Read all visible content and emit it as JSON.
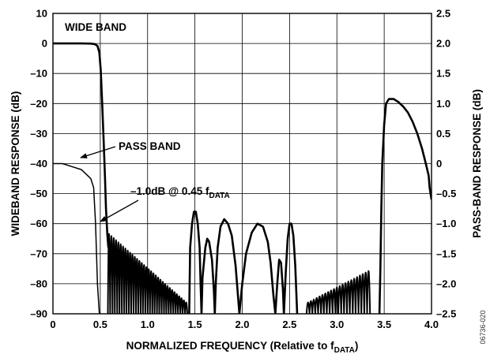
{
  "chart_data": {
    "type": "line",
    "xlabel": "NORMALIZED FREQUENCY (Relative to f",
    "xlabel_sub": "DATA",
    "xlabel_end": ")",
    "ylabel_left": "WIDEBAND RESPONSE (dB)",
    "ylabel_right": "PASS-BAND RESPONSE (dB)",
    "xlim": [
      0,
      4.0
    ],
    "ylim_left": [
      -90,
      10
    ],
    "ylim_right": [
      -2.5,
      2.5
    ],
    "x_ticks": [
      "0",
      "0.5",
      "1.0",
      "1.5",
      "2.0",
      "2.5",
      "3.0",
      "3.5",
      "4.0"
    ],
    "y_left_ticks": [
      "10",
      "0",
      "–10",
      "–20",
      "–30",
      "–40",
      "–50",
      "–60",
      "–70",
      "–80",
      "–90"
    ],
    "y_right_ticks": [
      "2.5",
      "2.0",
      "1.5",
      "1.0",
      "0.5",
      "0",
      "–0.5",
      "–1.0",
      "–1.5",
      "–2.0",
      "–2.5"
    ],
    "grid": true,
    "annotations": {
      "wide_band": "WIDE BAND",
      "pass_band": "PASS BAND",
      "marker_main": "–1.0dB @ 0.45 f",
      "marker_sub": "DATA"
    },
    "figure_id": "06736-020",
    "series": [
      {
        "axis": "left",
        "stroke_width": 2.6,
        "points": [
          [
            0,
            0
          ],
          [
            0.3,
            0
          ],
          [
            0.4,
            -0.05
          ],
          [
            0.44,
            -0.2
          ],
          [
            0.47,
            -0.8
          ],
          [
            0.49,
            -3
          ],
          [
            0.505,
            -9
          ],
          [
            0.52,
            -20
          ],
          [
            0.535,
            -32
          ],
          [
            0.55,
            -45
          ],
          [
            0.56,
            -55
          ],
          [
            0.575,
            -64
          ],
          [
            0.585,
            -68
          ]
        ]
      },
      {
        "axis": "right",
        "stroke_width": 1.5,
        "points": [
          [
            0,
            0
          ],
          [
            0.1,
            0
          ],
          [
            0.2,
            -0.05
          ],
          [
            0.3,
            -0.1
          ],
          [
            0.4,
            -0.25
          ],
          [
            0.43,
            -0.4
          ],
          [
            0.45,
            -1.0
          ],
          [
            0.47,
            -2.0
          ],
          [
            0.49,
            -2.5
          ]
        ]
      },
      {
        "axis": "left",
        "stroke_width": 2.6,
        "points": [
          [
            1.44,
            -90
          ],
          [
            1.45,
            -68
          ],
          [
            1.47,
            -60
          ],
          [
            1.49,
            -56
          ],
          [
            1.51,
            -56
          ],
          [
            1.53,
            -60
          ],
          [
            1.55,
            -68
          ],
          [
            1.56,
            -80
          ],
          [
            1.57,
            -90
          ],
          [
            1.58,
            -78
          ],
          [
            1.61,
            -68
          ],
          [
            1.63,
            -65
          ],
          [
            1.65,
            -66
          ],
          [
            1.68,
            -72
          ],
          [
            1.7,
            -82
          ],
          [
            1.71,
            -90
          ],
          [
            1.72,
            -80
          ],
          [
            1.74,
            -68
          ],
          [
            1.77,
            -61
          ],
          [
            1.81,
            -58.5
          ],
          [
            1.85,
            -60
          ],
          [
            1.89,
            -64
          ],
          [
            1.93,
            -74
          ],
          [
            1.97,
            -90
          ],
          [
            2.0,
            -80
          ],
          [
            2.04,
            -70
          ],
          [
            2.1,
            -63
          ],
          [
            2.16,
            -60
          ],
          [
            2.22,
            -61
          ],
          [
            2.27,
            -66
          ],
          [
            2.3,
            -73
          ],
          [
            2.33,
            -84
          ],
          [
            2.35,
            -90
          ],
          [
            2.37,
            -80
          ],
          [
            2.39,
            -72
          ],
          [
            2.41,
            -73
          ],
          [
            2.43,
            -82
          ],
          [
            2.44,
            -90
          ],
          [
            2.46,
            -76
          ],
          [
            2.48,
            -65
          ],
          [
            2.5,
            -60
          ],
          [
            2.52,
            -60
          ],
          [
            2.54,
            -64
          ],
          [
            2.56,
            -74
          ],
          [
            2.58,
            -90
          ]
        ]
      },
      {
        "axis": "left",
        "stroke_width": 2.6,
        "points": [
          [
            3.45,
            -90
          ],
          [
            3.46,
            -75
          ],
          [
            3.47,
            -55
          ],
          [
            3.48,
            -40
          ],
          [
            3.5,
            -27
          ],
          [
            3.52,
            -20
          ],
          [
            3.55,
            -18.5
          ],
          [
            3.6,
            -18.5
          ],
          [
            3.65,
            -19.5
          ],
          [
            3.7,
            -21
          ],
          [
            3.75,
            -23
          ],
          [
            3.8,
            -26
          ],
          [
            3.85,
            -30
          ],
          [
            3.9,
            -35
          ],
          [
            3.94,
            -40
          ],
          [
            3.97,
            -44
          ],
          [
            3.98,
            -48
          ],
          [
            4.0,
            -52
          ]
        ]
      }
    ],
    "ripple_bands": [
      {
        "x_start": 0.58,
        "x_end": 1.42,
        "count": 34,
        "peak_start": -62,
        "peak_end": -86,
        "bottom": -90
      },
      {
        "x_start": 2.68,
        "x_end": 3.35,
        "count": 22,
        "peak_start": -86,
        "peak_end": -75,
        "bottom": -90
      }
    ]
  }
}
